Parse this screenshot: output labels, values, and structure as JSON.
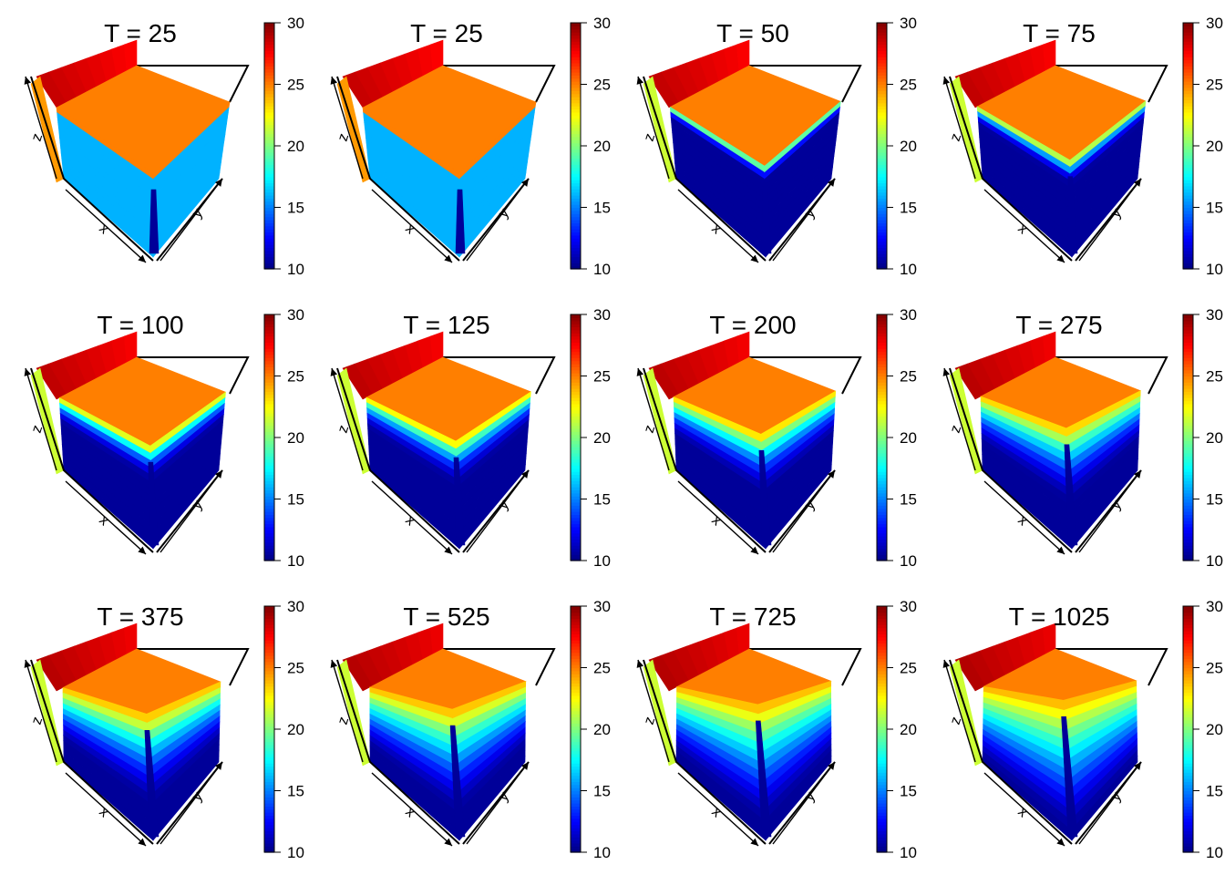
{
  "figure": {
    "colorbar_stops": [
      "#00007F",
      "#0000FF",
      "#007FFF",
      "#00FFFF",
      "#7FFF7F",
      "#FFFF00",
      "#FF7F00",
      "#FF0000",
      "#7F0000"
    ],
    "axis_letters": {
      "x": "x",
      "y": "y",
      "z": "z"
    }
  },
  "chart_data": [
    {
      "type": "surface",
      "title": "T = 25",
      "time": 25,
      "zlim": [
        10,
        30
      ],
      "colorbar_ticks": [
        "10",
        "15",
        "20",
        "25",
        "30"
      ],
      "plateau_value": 25,
      "stage": 0.0
    },
    {
      "type": "surface",
      "title": "T = 25",
      "time": 25,
      "zlim": [
        10,
        30
      ],
      "colorbar_ticks": [
        "10",
        "15",
        "20",
        "25",
        "30"
      ],
      "plateau_value": 25,
      "stage": 0.0
    },
    {
      "type": "surface",
      "title": "T = 50",
      "time": 50,
      "zlim": [
        10,
        30
      ],
      "colorbar_ticks": [
        "10",
        "15",
        "20",
        "25",
        "30"
      ],
      "plateau_value": 25,
      "stage": 0.12
    },
    {
      "type": "surface",
      "title": "T = 75",
      "time": 75,
      "zlim": [
        10,
        30
      ],
      "colorbar_ticks": [
        "10",
        "15",
        "20",
        "25",
        "30"
      ],
      "plateau_value": 25,
      "stage": 0.22
    },
    {
      "type": "surface",
      "title": "T = 100",
      "time": 100,
      "zlim": [
        10,
        30
      ],
      "colorbar_ticks": [
        "10",
        "15",
        "20",
        "25",
        "30"
      ],
      "plateau_value": 25,
      "stage": 0.32
    },
    {
      "type": "surface",
      "title": "T = 125",
      "time": 125,
      "zlim": [
        10,
        30
      ],
      "colorbar_ticks": [
        "10",
        "15",
        "20",
        "25",
        "30"
      ],
      "plateau_value": 25,
      "stage": 0.4
    },
    {
      "type": "surface",
      "title": "T = 200",
      "time": 200,
      "zlim": [
        10,
        30
      ],
      "colorbar_ticks": [
        "10",
        "15",
        "20",
        "25",
        "30"
      ],
      "plateau_value": 25,
      "stage": 0.52
    },
    {
      "type": "surface",
      "title": "T = 275",
      "time": 275,
      "zlim": [
        10,
        30
      ],
      "colorbar_ticks": [
        "10",
        "15",
        "20",
        "25",
        "30"
      ],
      "plateau_value": 25,
      "stage": 0.62
    },
    {
      "type": "surface",
      "title": "T = 375",
      "time": 375,
      "zlim": [
        10,
        30
      ],
      "colorbar_ticks": [
        "10",
        "15",
        "20",
        "25",
        "30"
      ],
      "plateau_value": 25,
      "stage": 0.72
    },
    {
      "type": "surface",
      "title": "T = 525",
      "time": 525,
      "zlim": [
        10,
        30
      ],
      "colorbar_ticks": [
        "10",
        "15",
        "20",
        "25",
        "30"
      ],
      "plateau_value": 25,
      "stage": 0.8
    },
    {
      "type": "surface",
      "title": "T = 725",
      "time": 725,
      "zlim": [
        10,
        30
      ],
      "colorbar_ticks": [
        "10",
        "15",
        "20",
        "25",
        "30"
      ],
      "plateau_value": 25,
      "stage": 0.88
    },
    {
      "type": "surface",
      "title": "T = 1025",
      "time": 1025,
      "zlim": [
        10,
        30
      ],
      "colorbar_ticks": [
        "10",
        "15",
        "20",
        "25",
        "30"
      ],
      "plateau_value": 25,
      "stage": 0.95
    }
  ]
}
